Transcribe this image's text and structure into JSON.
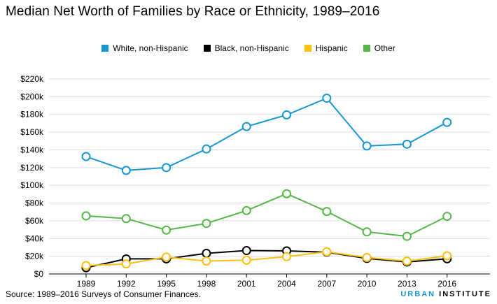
{
  "title": "Median Net Worth of Families by Race or Ethnicity, 1989–2016",
  "source": "Source: 1989–2016 Surveys of Consumer Finances.",
  "brand": {
    "part1": "URBAN",
    "part2": "INSTITUTE"
  },
  "chart_data": {
    "type": "line",
    "title": "Median Net Worth of Families by Race or Ethnicity, 1989–2016",
    "xlabel": "",
    "ylabel": "",
    "x": [
      "1989",
      "1992",
      "1995",
      "1998",
      "2001",
      "2004",
      "2007",
      "2010",
      "2013",
      "2016"
    ],
    "ylim": [
      0,
      220000
    ],
    "yticks": [
      0,
      20000,
      40000,
      60000,
      80000,
      100000,
      120000,
      140000,
      160000,
      180000,
      200000,
      220000
    ],
    "ytick_labels": [
      "$0",
      "$20k",
      "$40k",
      "$60k",
      "$80k",
      "$100k",
      "$120k",
      "$140k",
      "$160k",
      "$180k",
      "$200k",
      "$220k"
    ],
    "grid": "horizontal",
    "legend_position": "top-center",
    "series": [
      {
        "name": "White, non-Hispanic",
        "color": "#1696d2",
        "values": [
          132500,
          116800,
          120000,
          141000,
          166300,
          179500,
          198300,
          144400,
          146400,
          171000
        ]
      },
      {
        "name": "Black, non-Hispanic",
        "color": "#000000",
        "values": [
          7000,
          17000,
          17000,
          23300,
          26400,
          26000,
          24500,
          17500,
          13500,
          17100
        ]
      },
      {
        "name": "Hispanic",
        "color": "#fdbf11",
        "values": [
          9500,
          11300,
          19000,
          14500,
          15500,
          19500,
          25000,
          18500,
          14500,
          20500
        ]
      },
      {
        "name": "Other",
        "color": "#55b748",
        "values": [
          65500,
          62500,
          49500,
          57000,
          71500,
          90500,
          70500,
          47500,
          42500,
          65000
        ]
      }
    ]
  }
}
